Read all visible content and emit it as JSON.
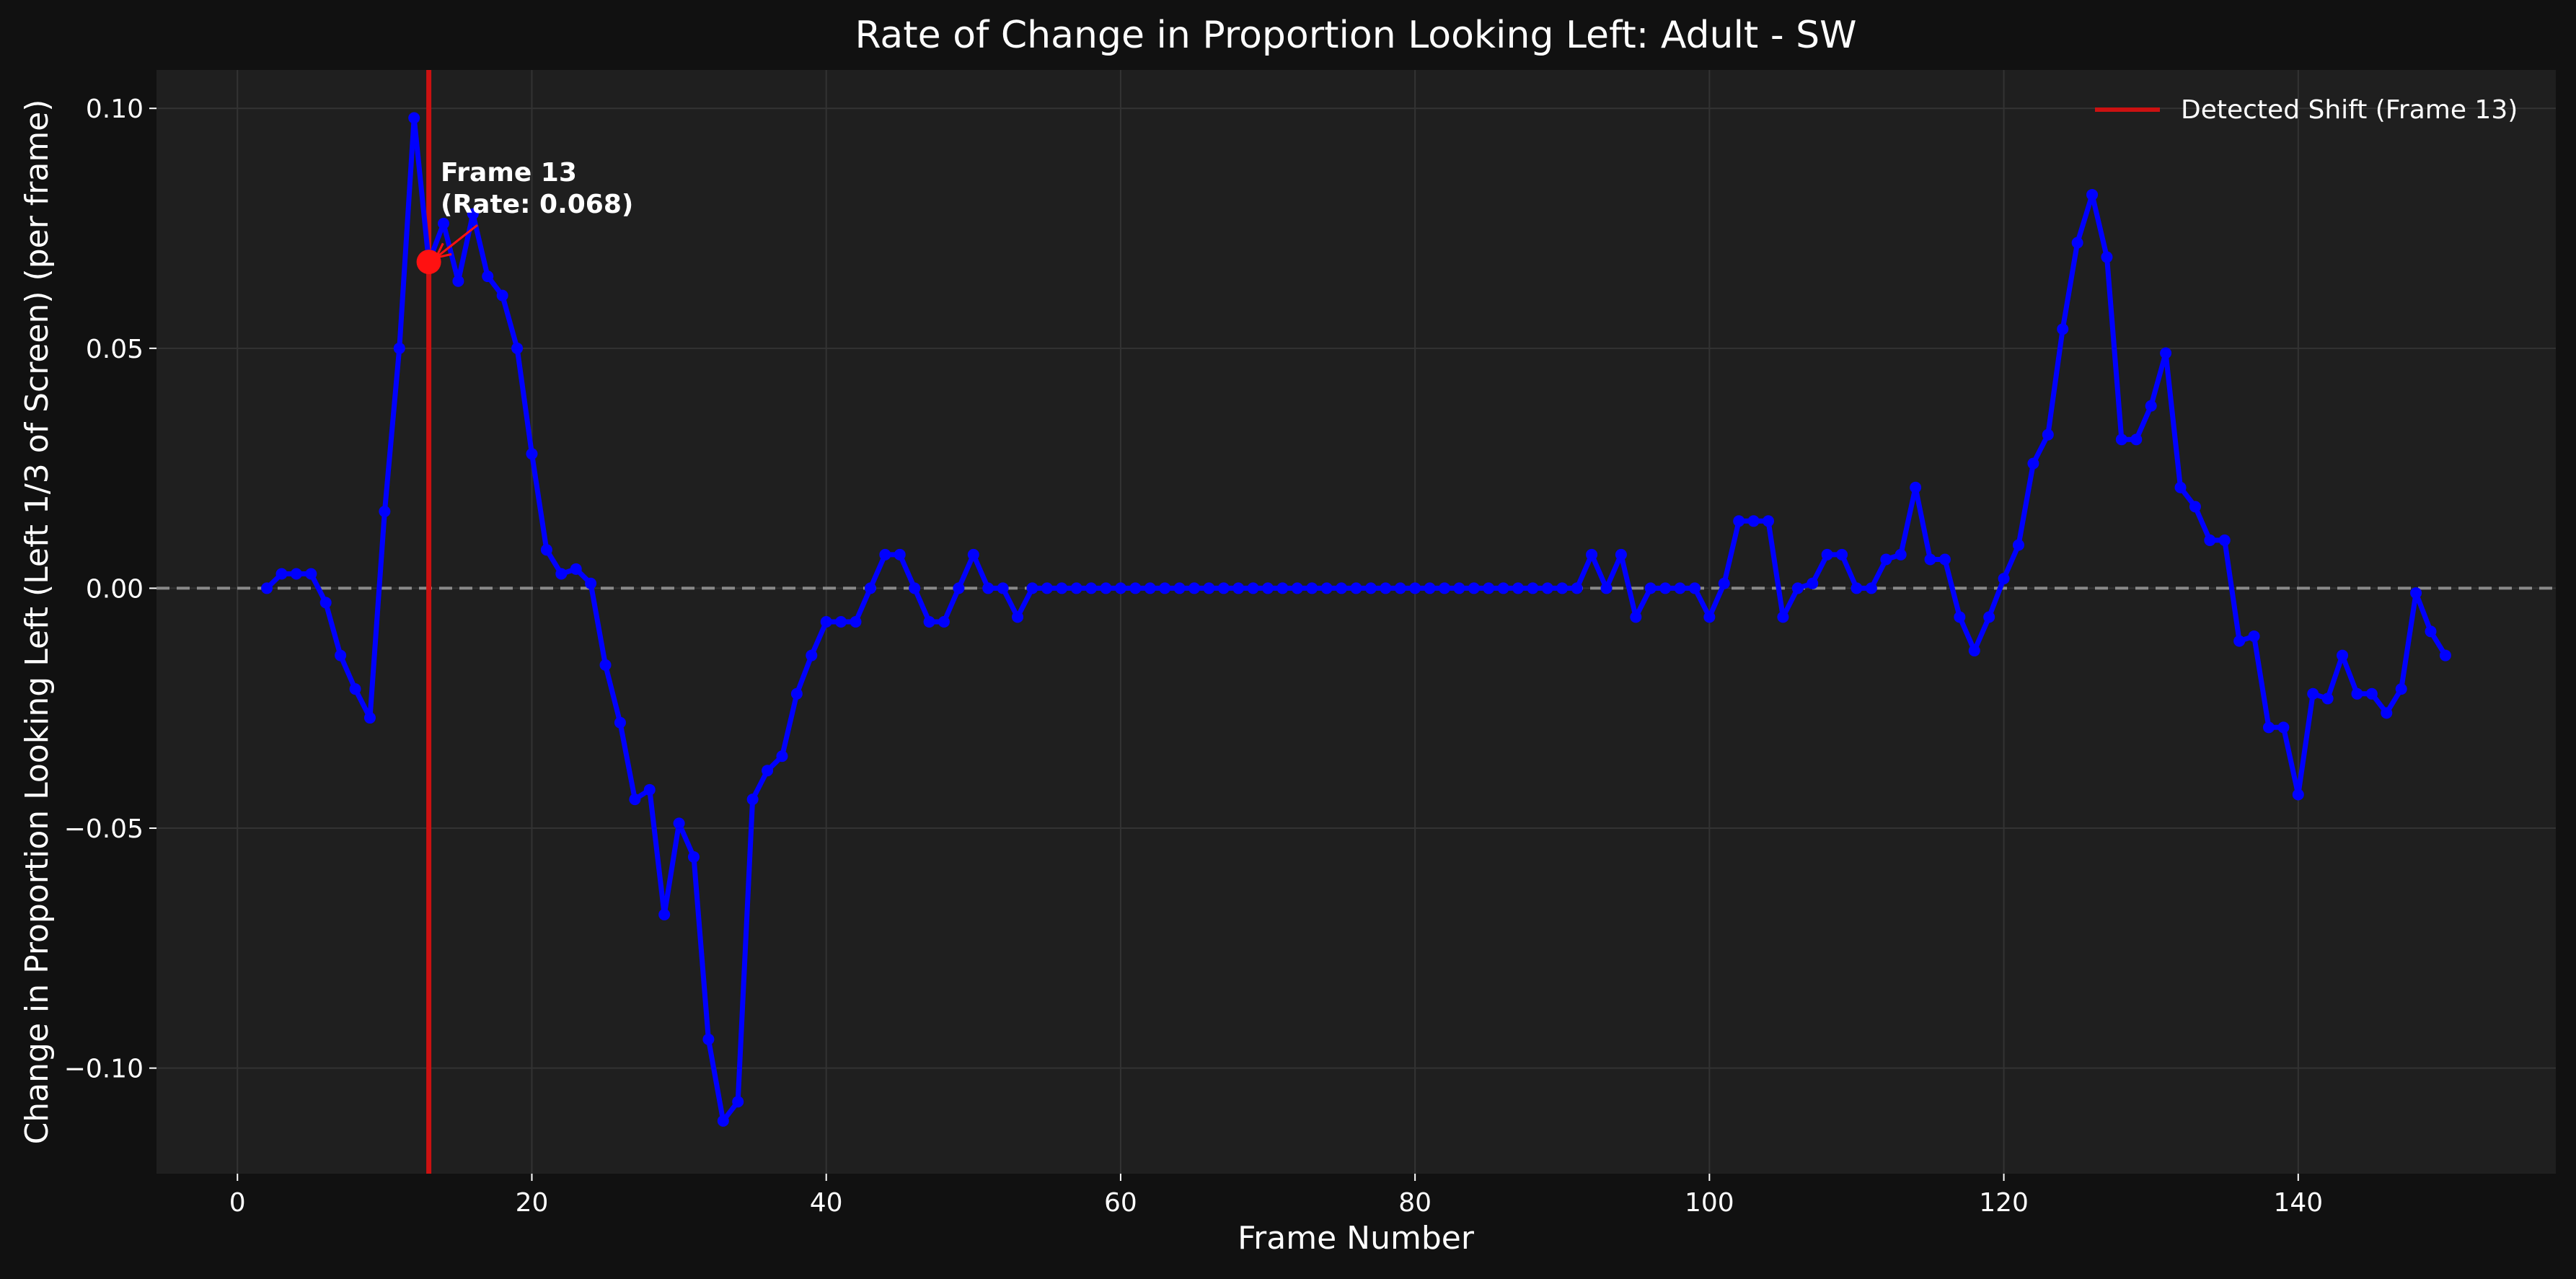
{
  "colors": {
    "figure_bg": "#111111",
    "plot_bg": "#1f1f1f",
    "grid": "#333333",
    "series": "#0000ff",
    "shift": "#cc1111",
    "highlight": "#ff1111",
    "zero_line": "#8a8a8a",
    "text": "#ffffff"
  },
  "chart_data": {
    "type": "line",
    "title": "Rate of Change in Proportion Looking Left: Adult - SW",
    "xlabel": "Frame Number",
    "ylabel": "Change in Proportion Looking Left (Left 1/3 of Screen) (per frame)",
    "xlim": [
      -5.5,
      157.5
    ],
    "ylim": [
      -0.122,
      0.108
    ],
    "xticks": [
      0,
      20,
      40,
      60,
      80,
      100,
      120,
      140
    ],
    "xtick_labels": [
      "0",
      "20",
      "40",
      "60",
      "80",
      "100",
      "120",
      "140"
    ],
    "yticks": [
      0.1,
      0.05,
      0.0,
      -0.05,
      -0.1
    ],
    "ytick_labels": [
      "0.10",
      "0.05",
      "0.00",
      "−0.05",
      "−0.10"
    ],
    "grid": true,
    "zero_line": 0,
    "legend_position": "top-right",
    "legend": [
      {
        "label": "Detected Shift (Frame 13)",
        "color": "#cc1111"
      }
    ],
    "shift_frame": 13,
    "highlight": {
      "x": 13,
      "y": 0.068
    },
    "annotation": {
      "line1": "Frame 13",
      "line2": "(Rate: 0.068)"
    },
    "series": [
      {
        "color": "#0000ff",
        "x": [
          2,
          3,
          4,
          5,
          6,
          7,
          8,
          9,
          10,
          11,
          12,
          13,
          14,
          15,
          16,
          17,
          18,
          19,
          20,
          21,
          22,
          23,
          24,
          25,
          26,
          27,
          28,
          29,
          30,
          31,
          32,
          33,
          34,
          35,
          36,
          37,
          38,
          39,
          40,
          41,
          42,
          43,
          44,
          45,
          46,
          47,
          48,
          49,
          50,
          51,
          52,
          53,
          54,
          55,
          56,
          57,
          58,
          59,
          60,
          61,
          62,
          63,
          64,
          65,
          66,
          67,
          68,
          69,
          70,
          71,
          72,
          73,
          74,
          75,
          76,
          77,
          78,
          79,
          80,
          81,
          82,
          83,
          84,
          85,
          86,
          87,
          88,
          89,
          90,
          91,
          92,
          93,
          94,
          95,
          96,
          97,
          98,
          99,
          100,
          101,
          102,
          103,
          104,
          105,
          106,
          107,
          108,
          109,
          110,
          111,
          112,
          113,
          114,
          115,
          116,
          117,
          118,
          119,
          120,
          121,
          122,
          123,
          124,
          125,
          126,
          127,
          128,
          129,
          130,
          131,
          132,
          133,
          134,
          135,
          136,
          137,
          138,
          139,
          140,
          141,
          142,
          143,
          144,
          145,
          146,
          147,
          148,
          149,
          150
        ],
        "y": [
          0,
          0.003,
          0.003,
          0.003,
          -0.003,
          -0.014,
          -0.021,
          -0.027,
          0.016,
          0.05,
          0.098,
          0.068,
          0.076,
          0.064,
          0.078,
          0.065,
          0.061,
          0.05,
          0.028,
          0.008,
          0.003,
          0.004,
          0.001,
          -0.016,
          -0.028,
          -0.044,
          -0.042,
          -0.068,
          -0.049,
          -0.056,
          -0.094,
          -0.111,
          -0.107,
          -0.044,
          -0.038,
          -0.035,
          -0.022,
          -0.014,
          -0.007,
          -0.007,
          -0.007,
          0,
          0.007,
          0.007,
          0,
          -0.007,
          -0.007,
          0,
          0.007,
          0,
          0,
          -0.006,
          0,
          0,
          0,
          0,
          0,
          0,
          0,
          0,
          0,
          0,
          0,
          0,
          0,
          0,
          0,
          0,
          0,
          0,
          0,
          0,
          0,
          0,
          0,
          0,
          0,
          0,
          0,
          0,
          0,
          0,
          0,
          0,
          0,
          0,
          0,
          0,
          0,
          0,
          0.007,
          0,
          0.007,
          -0.006,
          0,
          0,
          0,
          0,
          -0.006,
          0.001,
          0.014,
          0.014,
          0.014,
          -0.006,
          0,
          0.001,
          0.007,
          0.007,
          0,
          0,
          0.006,
          0.007,
          0.021,
          0.006,
          0.006,
          -0.006,
          -0.013,
          -0.006,
          0.002,
          0.009,
          0.026,
          0.032,
          0.054,
          0.072,
          0.082,
          0.069,
          0.031,
          0.031,
          0.038,
          0.049,
          0.021,
          0.017,
          0.01,
          0.01,
          -0.011,
          -0.01,
          -0.029,
          -0.029,
          -0.043,
          -0.022,
          -0.023,
          -0.014,
          -0.022,
          -0.022,
          -0.026,
          -0.021,
          -0.001,
          -0.009,
          -0.014
        ]
      }
    ]
  }
}
